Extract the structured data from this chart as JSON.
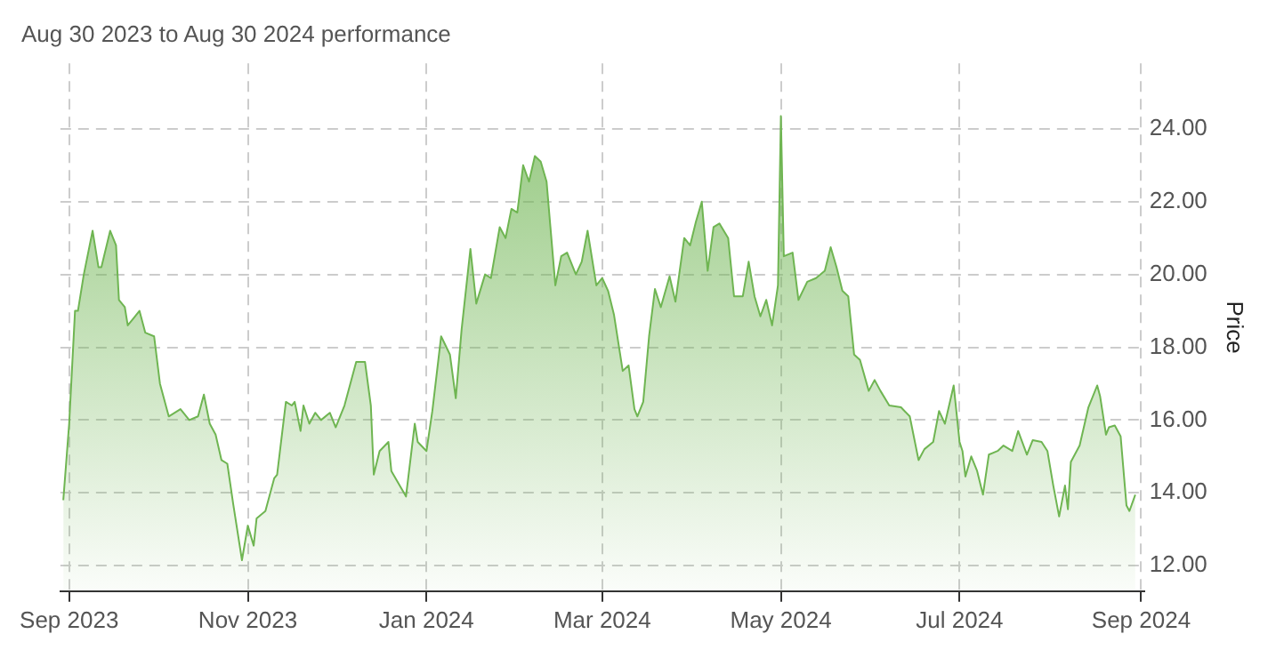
{
  "chart_data": {
    "type": "area",
    "title": "Aug 30 2023 to Aug 30 2024 performance",
    "ylabel": "Price",
    "x": [
      "2023-08-30",
      "2023-09-01",
      "2023-09-03",
      "2023-09-04",
      "2023-09-06",
      "2023-09-09",
      "2023-09-11",
      "2023-09-12",
      "2023-09-15",
      "2023-09-17",
      "2023-09-18",
      "2023-09-20",
      "2023-09-21",
      "2023-09-23",
      "2023-09-25",
      "2023-09-27",
      "2023-09-30",
      "2023-10-02",
      "2023-10-05",
      "2023-10-09",
      "2023-10-12",
      "2023-10-15",
      "2023-10-17",
      "2023-10-19",
      "2023-10-21",
      "2023-10-23",
      "2023-10-25",
      "2023-10-27",
      "2023-10-30",
      "2023-11-01",
      "2023-11-03",
      "2023-11-04",
      "2023-11-07",
      "2023-11-10",
      "2023-11-11",
      "2023-11-14",
      "2023-11-16",
      "2023-11-17",
      "2023-11-19",
      "2023-11-20",
      "2023-11-22",
      "2023-11-24",
      "2023-11-26",
      "2023-11-29",
      "2023-12-01",
      "2023-12-04",
      "2023-12-06",
      "2023-12-08",
      "2023-12-11",
      "2023-12-13",
      "2023-12-14",
      "2023-12-16",
      "2023-12-19",
      "2023-12-20",
      "2023-12-25",
      "2023-12-28",
      "2023-12-29",
      "2024-01-01",
      "2024-01-03",
      "2024-01-06",
      "2024-01-09",
      "2024-01-11",
      "2024-01-13",
      "2024-01-16",
      "2024-01-18",
      "2024-01-21",
      "2024-01-23",
      "2024-01-26",
      "2024-01-28",
      "2024-01-30",
      "2024-02-01",
      "2024-02-03",
      "2024-02-05",
      "2024-02-07",
      "2024-02-09",
      "2024-02-11",
      "2024-02-14",
      "2024-02-16",
      "2024-02-18",
      "2024-02-21",
      "2024-02-23",
      "2024-02-25",
      "2024-02-28",
      "2024-03-01",
      "2024-03-03",
      "2024-03-05",
      "2024-03-08",
      "2024-03-10",
      "2024-03-12",
      "2024-03-13",
      "2024-03-15",
      "2024-03-17",
      "2024-03-19",
      "2024-03-21",
      "2024-03-24",
      "2024-03-26",
      "2024-03-29",
      "2024-03-31",
      "2024-04-02",
      "2024-04-04",
      "2024-04-06",
      "2024-04-08",
      "2024-04-10",
      "2024-04-13",
      "2024-04-15",
      "2024-04-18",
      "2024-04-20",
      "2024-04-22",
      "2024-04-24",
      "2024-04-26",
      "2024-04-28",
      "2024-04-30",
      "2024-05-01",
      "2024-05-02",
      "2024-05-05",
      "2024-05-07",
      "2024-05-10",
      "2024-05-13",
      "2024-05-16",
      "2024-05-18",
      "2024-05-20",
      "2024-05-22",
      "2024-05-24",
      "2024-05-26",
      "2024-05-28",
      "2024-05-31",
      "2024-06-02",
      "2024-06-04",
      "2024-06-07",
      "2024-06-11",
      "2024-06-14",
      "2024-06-17",
      "2024-06-19",
      "2024-06-22",
      "2024-06-24",
      "2024-06-26",
      "2024-06-29",
      "2024-07-01",
      "2024-07-02",
      "2024-07-03",
      "2024-07-05",
      "2024-07-07",
      "2024-07-09",
      "2024-07-11",
      "2024-07-14",
      "2024-07-16",
      "2024-07-19",
      "2024-07-21",
      "2024-07-24",
      "2024-07-26",
      "2024-07-29",
      "2024-07-31",
      "2024-08-02",
      "2024-08-04",
      "2024-08-06",
      "2024-08-07",
      "2024-08-08",
      "2024-08-11",
      "2024-08-14",
      "2024-08-17",
      "2024-08-18",
      "2024-08-20",
      "2024-08-21",
      "2024-08-23",
      "2024-08-25",
      "2024-08-27",
      "2024-08-28",
      "2024-08-30"
    ],
    "series": [
      {
        "color": "#6fb552",
        "values": [
          13.8,
          15.9,
          19.0,
          19.0,
          20.0,
          21.2,
          20.2,
          20.2,
          21.2,
          20.8,
          19.3,
          19.1,
          18.6,
          18.8,
          19.0,
          18.4,
          18.3,
          17.0,
          16.1,
          16.3,
          16.0,
          16.1,
          16.7,
          15.9,
          15.6,
          14.9,
          14.8,
          13.7,
          12.15,
          13.1,
          12.55,
          13.3,
          13.5,
          14.4,
          14.5,
          16.5,
          16.4,
          16.5,
          15.7,
          16.4,
          15.9,
          16.2,
          16.0,
          16.2,
          15.8,
          16.4,
          17.0,
          17.6,
          17.6,
          16.4,
          14.5,
          15.15,
          15.4,
          14.6,
          13.9,
          15.9,
          15.4,
          15.15,
          16.25,
          18.3,
          17.8,
          16.6,
          18.5,
          20.7,
          19.2,
          20.0,
          19.9,
          21.3,
          21.0,
          21.8,
          21.7,
          23.0,
          22.55,
          23.25,
          23.1,
          22.55,
          19.7,
          20.5,
          20.6,
          20.0,
          20.35,
          21.2,
          19.7,
          19.9,
          19.55,
          18.9,
          17.35,
          17.5,
          16.3,
          16.1,
          16.5,
          18.3,
          19.6,
          19.1,
          19.95,
          19.25,
          21.0,
          20.8,
          21.45,
          22.0,
          20.1,
          21.3,
          21.4,
          21.0,
          19.4,
          19.4,
          20.35,
          19.4,
          18.85,
          19.3,
          18.6,
          19.7,
          24.35,
          20.5,
          20.6,
          19.3,
          19.8,
          19.9,
          20.1,
          20.75,
          20.2,
          19.55,
          19.4,
          17.8,
          17.65,
          16.8,
          17.1,
          16.8,
          16.4,
          16.35,
          16.1,
          14.9,
          15.2,
          15.4,
          16.25,
          15.9,
          16.95,
          15.4,
          15.15,
          14.45,
          15.0,
          14.6,
          13.95,
          15.05,
          15.15,
          15.3,
          15.15,
          15.7,
          15.05,
          15.45,
          15.4,
          15.15,
          14.2,
          13.35,
          14.2,
          13.55,
          14.85,
          15.3,
          16.35,
          16.95,
          16.65,
          15.6,
          15.8,
          15.85,
          15.55,
          13.65,
          13.5,
          13.95
        ]
      }
    ],
    "xlim": [
      "2023-08-29",
      "2024-09-02"
    ],
    "xticks": [
      {
        "value": "2023-09-01",
        "label": "Sep 2023"
      },
      {
        "value": "2023-11-01",
        "label": "Nov 2023"
      },
      {
        "value": "2024-01-01",
        "label": "Jan 2024"
      },
      {
        "value": "2024-03-01",
        "label": "Mar 2024"
      },
      {
        "value": "2024-05-01",
        "label": "May 2024"
      },
      {
        "value": "2024-07-01",
        "label": "Jul 2024"
      },
      {
        "value": "2024-09-01",
        "label": "Sep 2024"
      }
    ],
    "ylim": [
      11.3,
      25.8
    ],
    "yticks": [
      {
        "value": 12,
        "label": "12.00"
      },
      {
        "value": 14,
        "label": "14.00"
      },
      {
        "value": 16,
        "label": "16.00"
      },
      {
        "value": 18,
        "label": "18.00"
      },
      {
        "value": 20,
        "label": "20.00"
      },
      {
        "value": 22,
        "label": "22.00"
      },
      {
        "value": 24,
        "label": "24.00"
      }
    ],
    "grid": true,
    "legend": false,
    "marker": "none",
    "line_style": "solid"
  }
}
